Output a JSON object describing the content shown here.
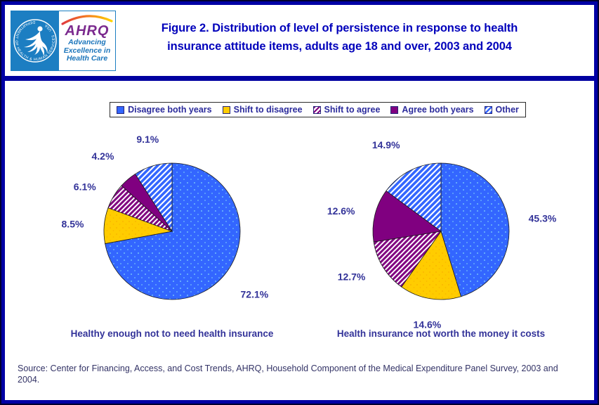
{
  "page": {
    "background": "#FFFFFF",
    "border_color": "#0000A0"
  },
  "header": {
    "title": "Figure 2. Distribution of level of persistence in response to health insurance attitude items, adults age 18 and over, 2003 and 2004",
    "logo": {
      "hhs_ring_text": "DEPARTMENT OF HEALTH & HUMAN SERVICES · USA",
      "ahrq_acronym": "AHRQ",
      "ahrq_tagline": "Advancing Excellence in Health Care"
    }
  },
  "legend": {
    "items": [
      {
        "label": "Disagree both years",
        "style": "blue-solid"
      },
      {
        "label": "Shift to disagree",
        "style": "yellow-solid"
      },
      {
        "label": "Shift to agree",
        "style": "purple-hatch"
      },
      {
        "label": "Agree both years",
        "style": "purple-solid"
      },
      {
        "label": "Other",
        "style": "blue-hatch"
      }
    ]
  },
  "chart_data": [
    {
      "type": "pie",
      "title": "Healthy enough not to need health insurance",
      "categories": [
        "Disagree both years",
        "Shift to disagree",
        "Shift to agree",
        "Agree both years",
        "Other"
      ],
      "values": [
        72.1,
        8.5,
        6.1,
        4.2,
        9.1
      ],
      "labels": [
        "72.1%",
        "8.5%",
        "6.1%",
        "4.2%",
        "9.1%"
      ],
      "styles": [
        "blue-dots",
        "yellow-dots",
        "purple-hatch",
        "purple-solid",
        "blue-hatch"
      ],
      "start": "12-oclock",
      "direction": "clockwise",
      "legend_position": "top-shared"
    },
    {
      "type": "pie",
      "title": "Health insurance not worth the money it costs",
      "categories": [
        "Disagree both years",
        "Shift to disagree",
        "Shift to agree",
        "Agree both years",
        "Other"
      ],
      "values": [
        45.3,
        14.6,
        12.7,
        12.6,
        14.9
      ],
      "labels": [
        "45.3%",
        "14.6%",
        "12.7%",
        "12.6%",
        "14.9%"
      ],
      "styles": [
        "blue-dots",
        "yellow-dots",
        "purple-hatch",
        "purple-solid",
        "blue-hatch"
      ],
      "start": "12-oclock",
      "direction": "clockwise",
      "legend_position": "top-shared"
    }
  ],
  "footer": {
    "source": "Source: Center for Financing, Access, and Cost Trends, AHRQ, Household Component of the Medical Expenditure Panel Survey, 2003 and 2004."
  },
  "colors": {
    "title_text": "#0000BB",
    "label_text": "#333399",
    "source_text": "#333366",
    "divider": "#0000A0",
    "slice_blue": "#3366FF",
    "slice_blue_dot": "#7ED0F8",
    "slice_yellow": "#FFCC00",
    "slice_yellow_dot": "#F59E00",
    "slice_purple": "#800080",
    "hhs_blue": "#1C7EC2",
    "ahrq_purple": "#7B2A8E"
  }
}
